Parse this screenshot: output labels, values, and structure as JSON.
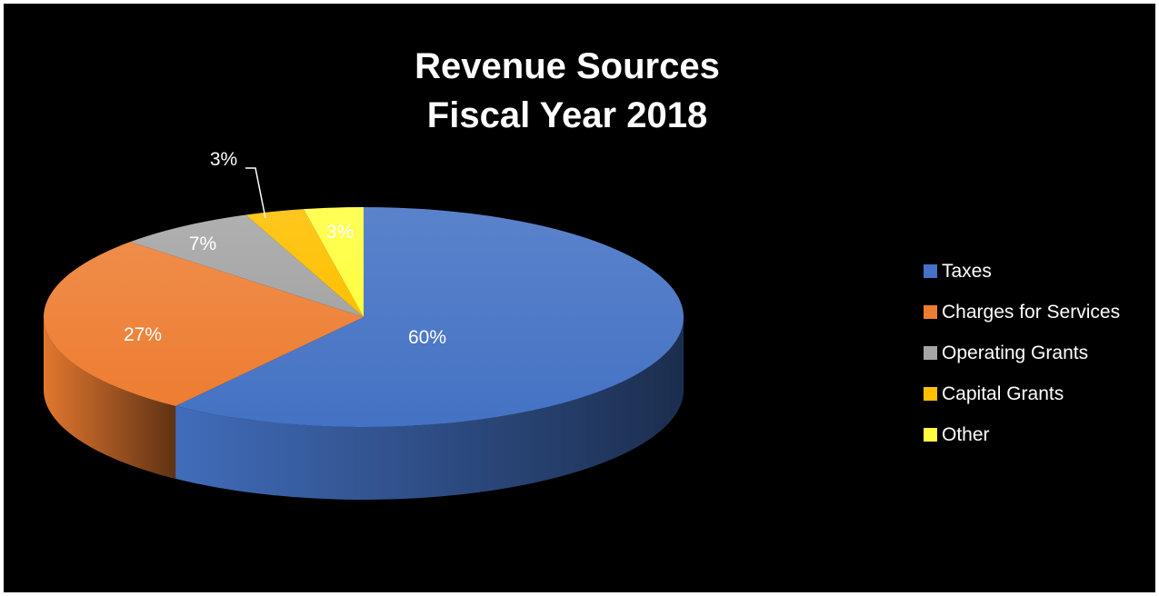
{
  "chart_data": {
    "type": "pie",
    "title": [
      "Revenue Sources",
      "Fiscal Year 2018"
    ],
    "slices": [
      {
        "name": "Taxes",
        "value": 60,
        "label": "60%",
        "color": "#4472C4"
      },
      {
        "name": "Charges for Services",
        "value": 27,
        "label": "27%",
        "color": "#ED7D31"
      },
      {
        "name": "Operating Grants",
        "value": 7,
        "label": "7%",
        "color": "#A5A5A5"
      },
      {
        "name": "Capital Grants",
        "value": 3,
        "label": "3%",
        "color": "#FFC000"
      },
      {
        "name": "Other",
        "value": 3,
        "label": "3%",
        "color": "#FFFF40"
      }
    ],
    "three_d": true,
    "legend_position": "right",
    "background": "#000000"
  }
}
